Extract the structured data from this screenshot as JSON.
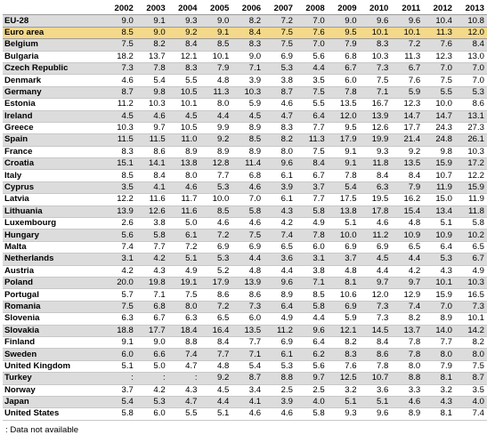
{
  "years": [
    "2002",
    "2003",
    "2004",
    "2005",
    "2006",
    "2007",
    "2008",
    "2009",
    "2010",
    "2011",
    "2012",
    "2013"
  ],
  "rows": [
    {
      "country": "EU-28",
      "values": [
        "9.0",
        "9.1",
        "9.3",
        "9.0",
        "8.2",
        "7.2",
        "7.0",
        "9.0",
        "9.6",
        "9.6",
        "10.4",
        "10.8"
      ]
    },
    {
      "country": "Euro area",
      "values": [
        "8.5",
        "9.0",
        "9.2",
        "9.1",
        "8.4",
        "7.5",
        "7.6",
        "9.5",
        "10.1",
        "10.1",
        "11.3",
        "12.0"
      ]
    },
    {
      "country": "Belgium",
      "values": [
        "7.5",
        "8.2",
        "8.4",
        "8.5",
        "8.3",
        "7.5",
        "7.0",
        "7.9",
        "8.3",
        "7.2",
        "7.6",
        "8.4"
      ]
    },
    {
      "country": "Bulgaria",
      "values": [
        "18.2",
        "13.7",
        "12.1",
        "10.1",
        "9.0",
        "6.9",
        "5.6",
        "6.8",
        "10.3",
        "11.3",
        "12.3",
        "13.0"
      ]
    },
    {
      "country": "Czech Republic",
      "values": [
        "7.3",
        "7.8",
        "8.3",
        "7.9",
        "7.1",
        "5.3",
        "4.4",
        "6.7",
        "7.3",
        "6.7",
        "7.0",
        "7.0"
      ]
    },
    {
      "country": "Denmark",
      "values": [
        "4.6",
        "5.4",
        "5.5",
        "4.8",
        "3.9",
        "3.8",
        "3.5",
        "6.0",
        "7.5",
        "7.6",
        "7.5",
        "7.0"
      ]
    },
    {
      "country": "Germany",
      "values": [
        "8.7",
        "9.8",
        "10.5",
        "11.3",
        "10.3",
        "8.7",
        "7.5",
        "7.8",
        "7.1",
        "5.9",
        "5.5",
        "5.3"
      ]
    },
    {
      "country": "Estonia",
      "values": [
        "11.2",
        "10.3",
        "10.1",
        "8.0",
        "5.9",
        "4.6",
        "5.5",
        "13.5",
        "16.7",
        "12.3",
        "10.0",
        "8.6"
      ]
    },
    {
      "country": "Ireland",
      "values": [
        "4.5",
        "4.6",
        "4.5",
        "4.4",
        "4.5",
        "4.7",
        "6.4",
        "12.0",
        "13.9",
        "14.7",
        "14.7",
        "13.1"
      ]
    },
    {
      "country": "Greece",
      "values": [
        "10.3",
        "9.7",
        "10.5",
        "9.9",
        "8.9",
        "8.3",
        "7.7",
        "9.5",
        "12.6",
        "17.7",
        "24.3",
        "27.3"
      ]
    },
    {
      "country": "Spain",
      "values": [
        "11.5",
        "11.5",
        "11.0",
        "9.2",
        "8.5",
        "8.2",
        "11.3",
        "17.9",
        "19.9",
        "21.4",
        "24.8",
        "26.1"
      ]
    },
    {
      "country": "France",
      "values": [
        "8.3",
        "8.6",
        "8.9",
        "8.9",
        "8.9",
        "8.0",
        "7.5",
        "9.1",
        "9.3",
        "9.2",
        "9.8",
        "10.3"
      ]
    },
    {
      "country": "Croatia",
      "values": [
        "15.1",
        "14.1",
        "13.8",
        "12.8",
        "11.4",
        "9.6",
        "8.4",
        "9.1",
        "11.8",
        "13.5",
        "15.9",
        "17.2"
      ]
    },
    {
      "country": "Italy",
      "values": [
        "8.5",
        "8.4",
        "8.0",
        "7.7",
        "6.8",
        "6.1",
        "6.7",
        "7.8",
        "8.4",
        "8.4",
        "10.7",
        "12.2"
      ]
    },
    {
      "country": "Cyprus",
      "values": [
        "3.5",
        "4.1",
        "4.6",
        "5.3",
        "4.6",
        "3.9",
        "3.7",
        "5.4",
        "6.3",
        "7.9",
        "11.9",
        "15.9"
      ]
    },
    {
      "country": "Latvia",
      "values": [
        "12.2",
        "11.6",
        "11.7",
        "10.0",
        "7.0",
        "6.1",
        "7.7",
        "17.5",
        "19.5",
        "16.2",
        "15.0",
        "11.9"
      ]
    },
    {
      "country": "Lithuania",
      "values": [
        "13.9",
        "12.6",
        "11.6",
        "8.5",
        "5.8",
        "4.3",
        "5.8",
        "13.8",
        "17.8",
        "15.4",
        "13.4",
        "11.8"
      ]
    },
    {
      "country": "Luxembourg",
      "values": [
        "2.6",
        "3.8",
        "5.0",
        "4.6",
        "4.6",
        "4.2",
        "4.9",
        "5.1",
        "4.6",
        "4.8",
        "5.1",
        "5.8"
      ]
    },
    {
      "country": "Hungary",
      "values": [
        "5.6",
        "5.8",
        "6.1",
        "7.2",
        "7.5",
        "7.4",
        "7.8",
        "10.0",
        "11.2",
        "10.9",
        "10.9",
        "10.2"
      ]
    },
    {
      "country": "Malta",
      "values": [
        "7.4",
        "7.7",
        "7.2",
        "6.9",
        "6.9",
        "6.5",
        "6.0",
        "6.9",
        "6.9",
        "6.5",
        "6.4",
        "6.5"
      ]
    },
    {
      "country": "Netherlands",
      "values": [
        "3.1",
        "4.2",
        "5.1",
        "5.3",
        "4.4",
        "3.6",
        "3.1",
        "3.7",
        "4.5",
        "4.4",
        "5.3",
        "6.7"
      ]
    },
    {
      "country": "Austria",
      "values": [
        "4.2",
        "4.3",
        "4.9",
        "5.2",
        "4.8",
        "4.4",
        "3.8",
        "4.8",
        "4.4",
        "4.2",
        "4.3",
        "4.9"
      ]
    },
    {
      "country": "Poland",
      "values": [
        "20.0",
        "19.8",
        "19.1",
        "17.9",
        "13.9",
        "9.6",
        "7.1",
        "8.1",
        "9.7",
        "9.7",
        "10.1",
        "10.3"
      ]
    },
    {
      "country": "Portugal",
      "values": [
        "5.7",
        "7.1",
        "7.5",
        "8.6",
        "8.6",
        "8.9",
        "8.5",
        "10.6",
        "12.0",
        "12.9",
        "15.9",
        "16.5"
      ]
    },
    {
      "country": "Romania",
      "values": [
        "7.5",
        "6.8",
        "8.0",
        "7.2",
        "7.3",
        "6.4",
        "5.8",
        "6.9",
        "7.3",
        "7.4",
        "7.0",
        "7.3"
      ]
    },
    {
      "country": "Slovenia",
      "values": [
        "6.3",
        "6.7",
        "6.3",
        "6.5",
        "6.0",
        "4.9",
        "4.4",
        "5.9",
        "7.3",
        "8.2",
        "8.9",
        "10.1"
      ]
    },
    {
      "country": "Slovakia",
      "values": [
        "18.8",
        "17.7",
        "18.4",
        "16.4",
        "13.5",
        "11.2",
        "9.6",
        "12.1",
        "14.5",
        "13.7",
        "14.0",
        "14.2"
      ]
    },
    {
      "country": "Finland",
      "values": [
        "9.1",
        "9.0",
        "8.8",
        "8.4",
        "7.7",
        "6.9",
        "6.4",
        "8.2",
        "8.4",
        "7.8",
        "7.7",
        "8.2"
      ]
    },
    {
      "country": "Sweden",
      "values": [
        "6.0",
        "6.6",
        "7.4",
        "7.7",
        "7.1",
        "6.1",
        "6.2",
        "8.3",
        "8.6",
        "7.8",
        "8.0",
        "8.0"
      ]
    },
    {
      "country": "United Kingdom",
      "values": [
        "5.1",
        "5.0",
        "4.7",
        "4.8",
        "5.4",
        "5.3",
        "5.6",
        "7.6",
        "7.8",
        "8.0",
        "7.9",
        "7.5"
      ]
    },
    {
      "country": "Turkey",
      "values": [
        ":",
        ":",
        ":",
        "9.2",
        "8.7",
        "8.8",
        "9.7",
        "12.5",
        "10.7",
        "8.8",
        "8.1",
        "8.7"
      ]
    },
    {
      "country": "Norway",
      "values": [
        "3.7",
        "4.2",
        "4.3",
        "4.5",
        "3.4",
        "2.5",
        "2.5",
        "3.2",
        "3.6",
        "3.3",
        "3.2",
        "3.5"
      ]
    },
    {
      "country": "Japan",
      "values": [
        "5.4",
        "5.3",
        "4.7",
        "4.4",
        "4.1",
        "3.9",
        "4.0",
        "5.1",
        "5.1",
        "4.6",
        "4.3",
        "4.0"
      ]
    },
    {
      "country": "United States",
      "values": [
        "5.8",
        "6.0",
        "5.5",
        "5.1",
        "4.6",
        "4.6",
        "5.8",
        "9.3",
        "9.6",
        "8.9",
        "8.1",
        "7.4"
      ]
    }
  ],
  "footnote": ": Data not available"
}
